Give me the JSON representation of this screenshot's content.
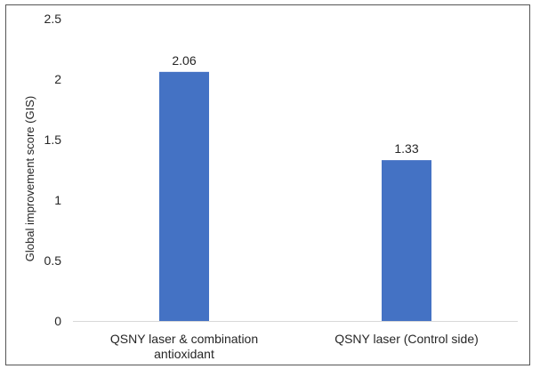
{
  "chart_data": {
    "type": "bar",
    "categories": [
      [
        "QSNY laser & combination",
        "antioxidant"
      ],
      [
        "QSNY laser (Control side)"
      ]
    ],
    "values": [
      2.06,
      1.33
    ],
    "data_labels": [
      "2.06",
      "1.33"
    ],
    "title": "",
    "xlabel": "",
    "ylabel": "Global improvement score (GIS)",
    "ylim": [
      0,
      2.5
    ],
    "yticks": [
      "0",
      "0.5",
      "1",
      "1.5",
      "2",
      "2.5"
    ],
    "grid": false,
    "legend": "none",
    "bar_color": "#4472C4",
    "axis_color": "#d9d9d9"
  }
}
